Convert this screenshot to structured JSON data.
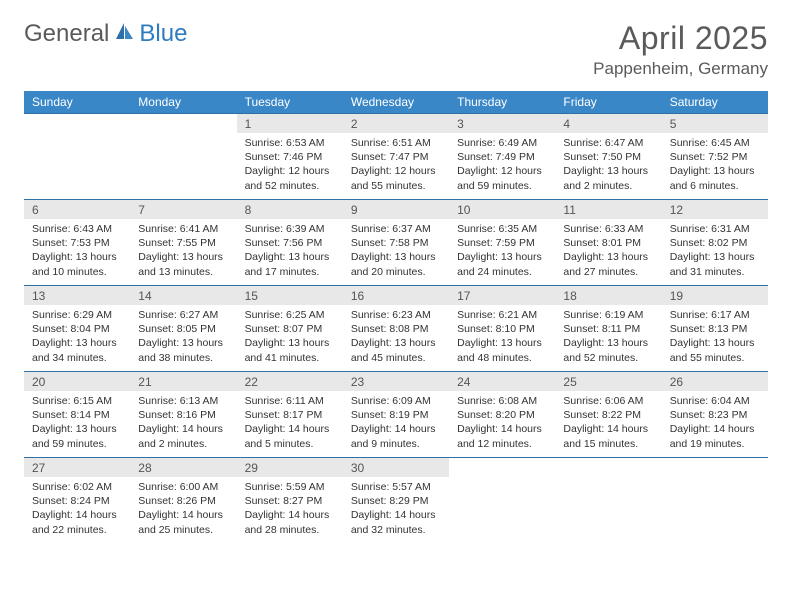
{
  "brand": {
    "part1": "General",
    "part2": "Blue"
  },
  "title": "April 2025",
  "location": "Pappenheim, Germany",
  "colors": {
    "header_bg": "#3a87c8",
    "header_text": "#ffffff",
    "daynum_bg": "#e8e8e8",
    "daynum_text": "#555555",
    "body_text": "#333333",
    "rule": "#2f6fa8",
    "brand_gray": "#5a5a5a",
    "brand_blue": "#2f7bbf"
  },
  "day_headers": [
    "Sunday",
    "Monday",
    "Tuesday",
    "Wednesday",
    "Thursday",
    "Friday",
    "Saturday"
  ],
  "weeks": [
    [
      null,
      null,
      {
        "n": "1",
        "sr": "Sunrise: 6:53 AM",
        "ss": "Sunset: 7:46 PM",
        "dl": "Daylight: 12 hours and 52 minutes."
      },
      {
        "n": "2",
        "sr": "Sunrise: 6:51 AM",
        "ss": "Sunset: 7:47 PM",
        "dl": "Daylight: 12 hours and 55 minutes."
      },
      {
        "n": "3",
        "sr": "Sunrise: 6:49 AM",
        "ss": "Sunset: 7:49 PM",
        "dl": "Daylight: 12 hours and 59 minutes."
      },
      {
        "n": "4",
        "sr": "Sunrise: 6:47 AM",
        "ss": "Sunset: 7:50 PM",
        "dl": "Daylight: 13 hours and 2 minutes."
      },
      {
        "n": "5",
        "sr": "Sunrise: 6:45 AM",
        "ss": "Sunset: 7:52 PM",
        "dl": "Daylight: 13 hours and 6 minutes."
      }
    ],
    [
      {
        "n": "6",
        "sr": "Sunrise: 6:43 AM",
        "ss": "Sunset: 7:53 PM",
        "dl": "Daylight: 13 hours and 10 minutes."
      },
      {
        "n": "7",
        "sr": "Sunrise: 6:41 AM",
        "ss": "Sunset: 7:55 PM",
        "dl": "Daylight: 13 hours and 13 minutes."
      },
      {
        "n": "8",
        "sr": "Sunrise: 6:39 AM",
        "ss": "Sunset: 7:56 PM",
        "dl": "Daylight: 13 hours and 17 minutes."
      },
      {
        "n": "9",
        "sr": "Sunrise: 6:37 AM",
        "ss": "Sunset: 7:58 PM",
        "dl": "Daylight: 13 hours and 20 minutes."
      },
      {
        "n": "10",
        "sr": "Sunrise: 6:35 AM",
        "ss": "Sunset: 7:59 PM",
        "dl": "Daylight: 13 hours and 24 minutes."
      },
      {
        "n": "11",
        "sr": "Sunrise: 6:33 AM",
        "ss": "Sunset: 8:01 PM",
        "dl": "Daylight: 13 hours and 27 minutes."
      },
      {
        "n": "12",
        "sr": "Sunrise: 6:31 AM",
        "ss": "Sunset: 8:02 PM",
        "dl": "Daylight: 13 hours and 31 minutes."
      }
    ],
    [
      {
        "n": "13",
        "sr": "Sunrise: 6:29 AM",
        "ss": "Sunset: 8:04 PM",
        "dl": "Daylight: 13 hours and 34 minutes."
      },
      {
        "n": "14",
        "sr": "Sunrise: 6:27 AM",
        "ss": "Sunset: 8:05 PM",
        "dl": "Daylight: 13 hours and 38 minutes."
      },
      {
        "n": "15",
        "sr": "Sunrise: 6:25 AM",
        "ss": "Sunset: 8:07 PM",
        "dl": "Daylight: 13 hours and 41 minutes."
      },
      {
        "n": "16",
        "sr": "Sunrise: 6:23 AM",
        "ss": "Sunset: 8:08 PM",
        "dl": "Daylight: 13 hours and 45 minutes."
      },
      {
        "n": "17",
        "sr": "Sunrise: 6:21 AM",
        "ss": "Sunset: 8:10 PM",
        "dl": "Daylight: 13 hours and 48 minutes."
      },
      {
        "n": "18",
        "sr": "Sunrise: 6:19 AM",
        "ss": "Sunset: 8:11 PM",
        "dl": "Daylight: 13 hours and 52 minutes."
      },
      {
        "n": "19",
        "sr": "Sunrise: 6:17 AM",
        "ss": "Sunset: 8:13 PM",
        "dl": "Daylight: 13 hours and 55 minutes."
      }
    ],
    [
      {
        "n": "20",
        "sr": "Sunrise: 6:15 AM",
        "ss": "Sunset: 8:14 PM",
        "dl": "Daylight: 13 hours and 59 minutes."
      },
      {
        "n": "21",
        "sr": "Sunrise: 6:13 AM",
        "ss": "Sunset: 8:16 PM",
        "dl": "Daylight: 14 hours and 2 minutes."
      },
      {
        "n": "22",
        "sr": "Sunrise: 6:11 AM",
        "ss": "Sunset: 8:17 PM",
        "dl": "Daylight: 14 hours and 5 minutes."
      },
      {
        "n": "23",
        "sr": "Sunrise: 6:09 AM",
        "ss": "Sunset: 8:19 PM",
        "dl": "Daylight: 14 hours and 9 minutes."
      },
      {
        "n": "24",
        "sr": "Sunrise: 6:08 AM",
        "ss": "Sunset: 8:20 PM",
        "dl": "Daylight: 14 hours and 12 minutes."
      },
      {
        "n": "25",
        "sr": "Sunrise: 6:06 AM",
        "ss": "Sunset: 8:22 PM",
        "dl": "Daylight: 14 hours and 15 minutes."
      },
      {
        "n": "26",
        "sr": "Sunrise: 6:04 AM",
        "ss": "Sunset: 8:23 PM",
        "dl": "Daylight: 14 hours and 19 minutes."
      }
    ],
    [
      {
        "n": "27",
        "sr": "Sunrise: 6:02 AM",
        "ss": "Sunset: 8:24 PM",
        "dl": "Daylight: 14 hours and 22 minutes."
      },
      {
        "n": "28",
        "sr": "Sunrise: 6:00 AM",
        "ss": "Sunset: 8:26 PM",
        "dl": "Daylight: 14 hours and 25 minutes."
      },
      {
        "n": "29",
        "sr": "Sunrise: 5:59 AM",
        "ss": "Sunset: 8:27 PM",
        "dl": "Daylight: 14 hours and 28 minutes."
      },
      {
        "n": "30",
        "sr": "Sunrise: 5:57 AM",
        "ss": "Sunset: 8:29 PM",
        "dl": "Daylight: 14 hours and 32 minutes."
      },
      null,
      null,
      null
    ]
  ]
}
